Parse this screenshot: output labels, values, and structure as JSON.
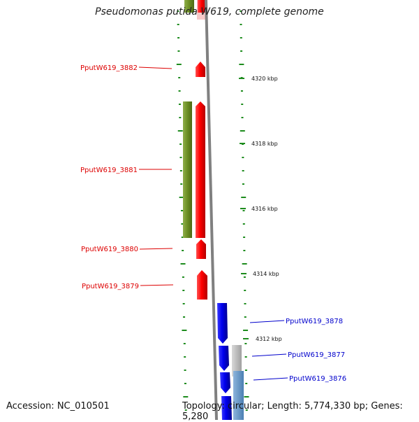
{
  "title": "Pseudomonas putida W619, complete genome",
  "footer": {
    "accession": "Accession: NC_010501",
    "topology": "Topology: circular; Length: 5,774,330 bp; Genes: 5,280"
  },
  "scale_labels": [
    "4320 kbp",
    "4318 kbp",
    "4316 kbp",
    "4314 kbp",
    "4312 kbp"
  ],
  "genes": [
    {
      "label": "PputW619_3882",
      "strand": "minus",
      "color": "#dd0000"
    },
    {
      "label": "PputW619_3881",
      "strand": "minus",
      "color": "#dd0000"
    },
    {
      "label": "PputW619_3880",
      "strand": "minus",
      "color": "#dd0000"
    },
    {
      "label": "PputW619_3879",
      "strand": "minus",
      "color": "#dd0000"
    },
    {
      "label": "PputW619_3878",
      "strand": "plus",
      "color": "#0000cc"
    },
    {
      "label": "PputW619_3877",
      "strand": "plus",
      "color": "#0000cc"
    },
    {
      "label": "PputW619_3876",
      "strand": "plus",
      "color": "#0000cc"
    }
  ],
  "colors": {
    "minus_strand": "#ee0000",
    "plus_strand": "#0000dd",
    "cog_band": "#6b8e23",
    "cog_band_gray": "#b8b8b8",
    "cog_band_blue": "#5b8fc0",
    "backbone": "#808080",
    "tick_marks": "#1e8c1e"
  }
}
